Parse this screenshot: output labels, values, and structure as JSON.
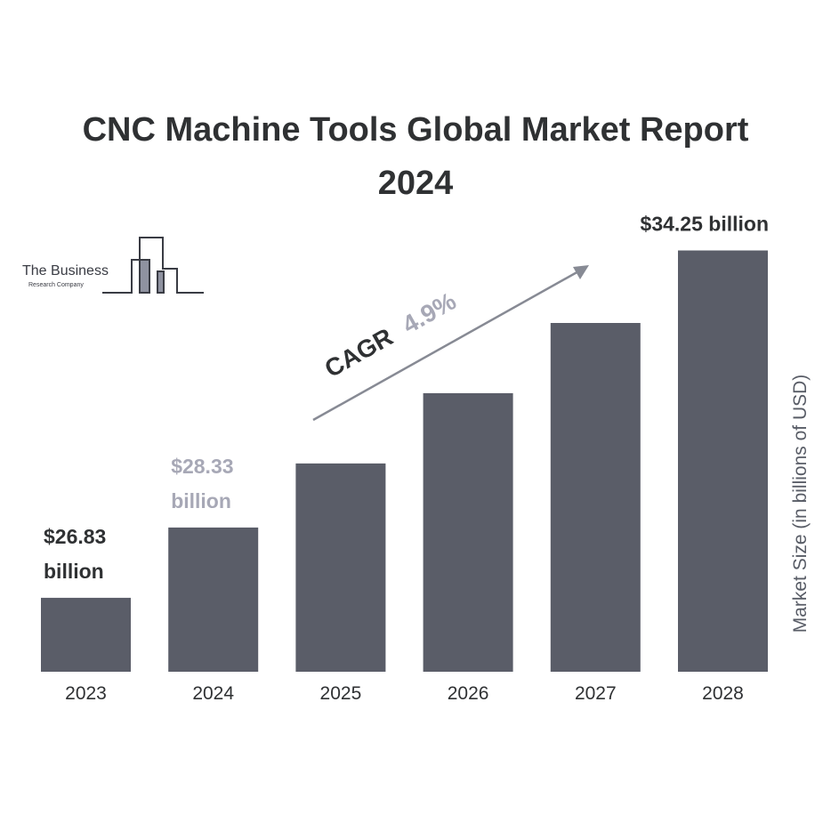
{
  "colors": {
    "bar": "#5a5d68",
    "text_dark": "#2f3133",
    "text_light": "#a7a8b6",
    "arrow": "#878a94",
    "logo": "#3a3c44"
  },
  "logo": {
    "line1": "The Business",
    "line2": "Research Company"
  },
  "annotation": {
    "cagr_label": "CAGR",
    "cagr_value": "4.9%"
  },
  "chart_data": {
    "type": "bar",
    "title": "CNC Machine Tools Global Market Report 2024",
    "title_lines": [
      "CNC Machine Tools Global Market Report",
      "2024"
    ],
    "xlabel": "",
    "ylabel": "Market Size (in billions of USD)",
    "categories": [
      "2023",
      "2024",
      "2025",
      "2026",
      "2027",
      "2028"
    ],
    "values": [
      26.83,
      28.33,
      29.7,
      31.2,
      32.7,
      34.25
    ],
    "ylim": [
      25.25,
      35.0
    ],
    "grid": false,
    "data_labels": [
      {
        "index": 0,
        "lines": [
          "$26.83",
          "billion"
        ],
        "style": "dark"
      },
      {
        "index": 1,
        "lines": [
          "$28.33",
          "billion"
        ],
        "style": "light"
      },
      {
        "index": 5,
        "lines": [
          "$34.25 billion"
        ],
        "style": "dark"
      }
    ]
  }
}
